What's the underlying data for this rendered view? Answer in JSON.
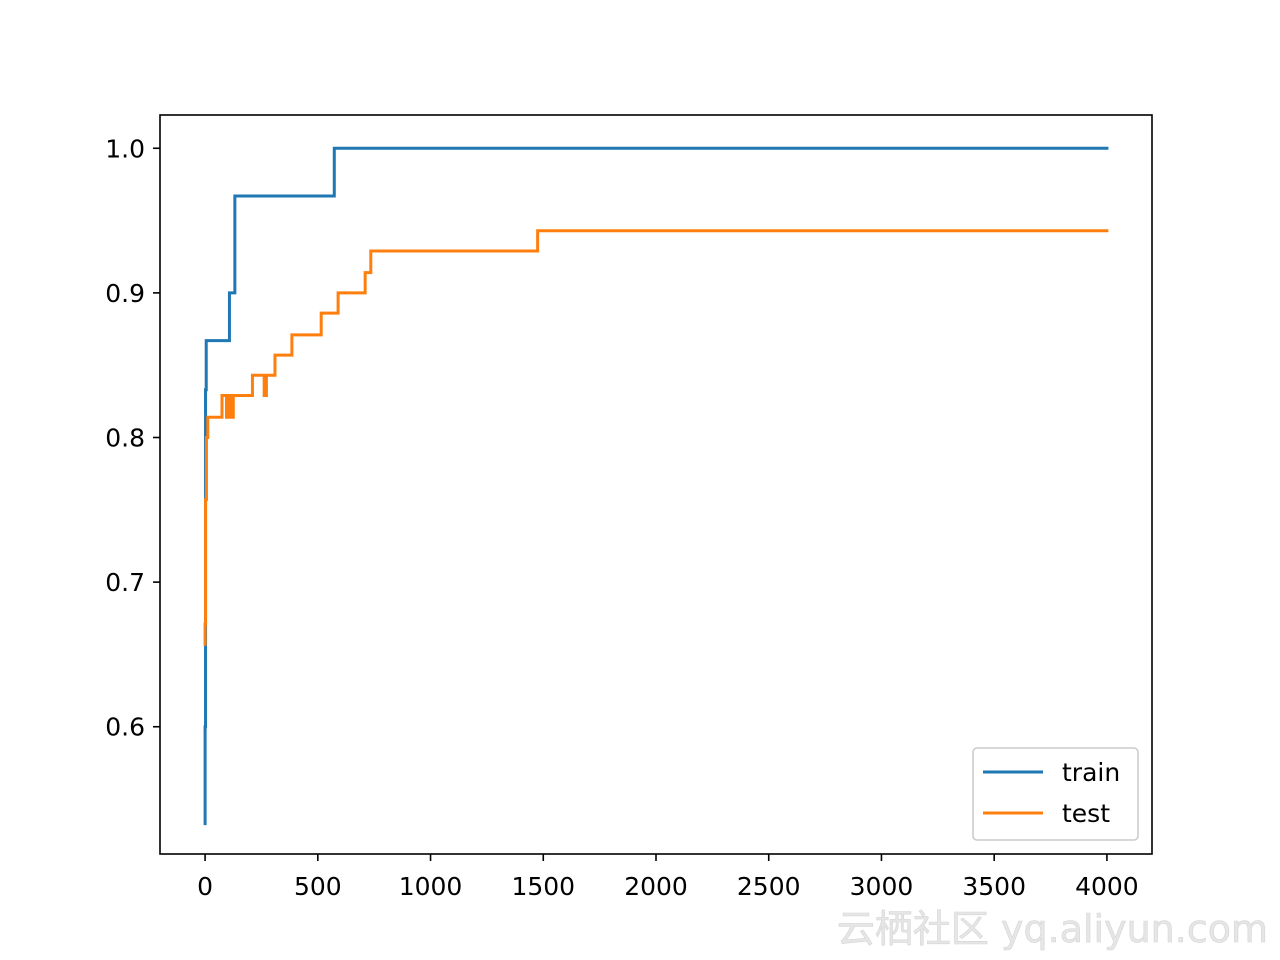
{
  "chart_data": {
    "type": "line",
    "title": "",
    "xlabel": "",
    "ylabel": "",
    "xlim": [
      -200,
      4200
    ],
    "ylim": [
      0.512,
      1.023
    ],
    "xticks": [
      0,
      500,
      1000,
      1500,
      2000,
      2500,
      3000,
      3500,
      4000
    ],
    "xtick_labels": [
      "0",
      "500",
      "1000",
      "1500",
      "2000",
      "2500",
      "3000",
      "3500",
      "4000"
    ],
    "yticks": [
      0.6,
      0.7,
      0.8,
      0.9,
      1.0
    ],
    "ytick_labels": [
      "0.6",
      "0.7",
      "0.8",
      "0.9",
      "1.0"
    ],
    "grid": false,
    "legend": {
      "position": "lower-right"
    },
    "series": [
      {
        "name": "train",
        "color": "#1f77b4",
        "step": true,
        "points": [
          [
            0,
            0.533
          ],
          [
            0,
            0.6
          ],
          [
            2,
            0.6
          ],
          [
            2,
            0.833
          ],
          [
            5,
            0.833
          ],
          [
            5,
            0.867
          ],
          [
            108,
            0.867
          ],
          [
            108,
            0.9
          ],
          [
            132,
            0.9
          ],
          [
            132,
            0.967
          ],
          [
            573,
            0.967
          ],
          [
            573,
            1.0
          ],
          [
            4000,
            1.0
          ]
        ]
      },
      {
        "name": "test",
        "color": "#ff7f0e",
        "step": true,
        "points": [
          [
            0,
            0.657
          ],
          [
            0,
            0.671
          ],
          [
            2,
            0.671
          ],
          [
            2,
            0.757
          ],
          [
            6,
            0.757
          ],
          [
            6,
            0.8
          ],
          [
            12,
            0.8
          ],
          [
            12,
            0.814
          ],
          [
            75,
            0.814
          ],
          [
            75,
            0.829
          ],
          [
            95,
            0.829
          ],
          [
            95,
            0.814
          ],
          [
            105,
            0.814
          ],
          [
            105,
            0.829
          ],
          [
            115,
            0.829
          ],
          [
            115,
            0.814
          ],
          [
            125,
            0.814
          ],
          [
            125,
            0.829
          ],
          [
            210,
            0.829
          ],
          [
            210,
            0.843
          ],
          [
            262,
            0.843
          ],
          [
            262,
            0.829
          ],
          [
            272,
            0.829
          ],
          [
            272,
            0.843
          ],
          [
            310,
            0.843
          ],
          [
            310,
            0.857
          ],
          [
            385,
            0.857
          ],
          [
            385,
            0.871
          ],
          [
            515,
            0.871
          ],
          [
            515,
            0.886
          ],
          [
            590,
            0.886
          ],
          [
            590,
            0.9
          ],
          [
            710,
            0.9
          ],
          [
            710,
            0.914
          ],
          [
            735,
            0.914
          ],
          [
            735,
            0.929
          ],
          [
            1475,
            0.929
          ],
          [
            1475,
            0.943
          ],
          [
            4000,
            0.943
          ]
        ]
      }
    ]
  },
  "watermark": {
    "text": "云栖社区 yq.aliyun.com"
  }
}
